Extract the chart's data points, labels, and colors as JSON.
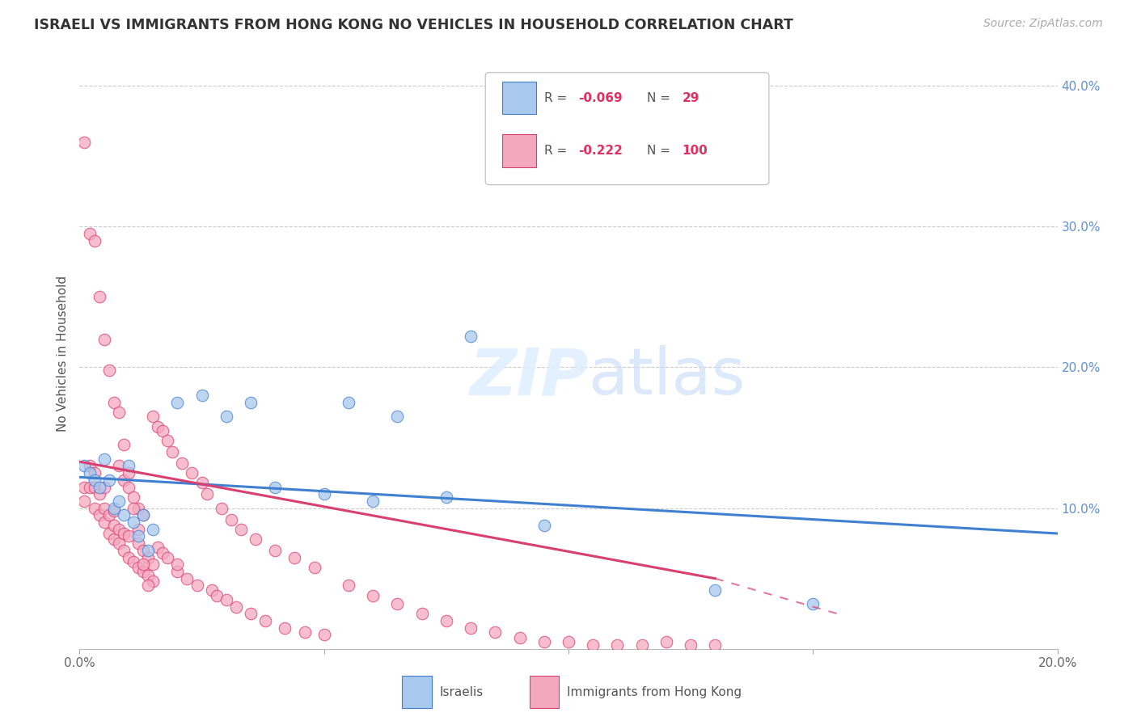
{
  "title": "ISRAELI VS IMMIGRANTS FROM HONG KONG NO VEHICLES IN HOUSEHOLD CORRELATION CHART",
  "source": "Source: ZipAtlas.com",
  "ylabel": "No Vehicles in Household",
  "xlim": [
    0.0,
    0.2
  ],
  "ylim": [
    0.0,
    0.42
  ],
  "blue_color": "#a8c8ee",
  "pink_color": "#f4a8c0",
  "blue_line_color": "#4080d0",
  "pink_line_color": "#d84070",
  "grid_color": "#cccccc",
  "background_color": "#ffffff",
  "israelis_x": [
    0.001,
    0.002,
    0.003,
    0.004,
    0.005,
    0.006,
    0.007,
    0.008,
    0.009,
    0.01,
    0.011,
    0.012,
    0.013,
    0.014,
    0.015,
    0.02,
    0.025,
    0.03,
    0.035,
    0.04,
    0.05,
    0.055,
    0.06,
    0.065,
    0.075,
    0.08,
    0.095,
    0.13,
    0.15
  ],
  "israelis_y": [
    0.13,
    0.125,
    0.12,
    0.115,
    0.135,
    0.12,
    0.1,
    0.105,
    0.095,
    0.13,
    0.09,
    0.08,
    0.095,
    0.07,
    0.085,
    0.175,
    0.18,
    0.165,
    0.175,
    0.115,
    0.11,
    0.175,
    0.105,
    0.165,
    0.108,
    0.222,
    0.088,
    0.042,
    0.032
  ],
  "hk_x": [
    0.001,
    0.001,
    0.002,
    0.002,
    0.003,
    0.003,
    0.003,
    0.004,
    0.004,
    0.005,
    0.005,
    0.005,
    0.006,
    0.006,
    0.007,
    0.007,
    0.007,
    0.008,
    0.008,
    0.008,
    0.009,
    0.009,
    0.009,
    0.01,
    0.01,
    0.01,
    0.011,
    0.011,
    0.012,
    0.012,
    0.012,
    0.013,
    0.013,
    0.013,
    0.014,
    0.014,
    0.015,
    0.015,
    0.015,
    0.016,
    0.016,
    0.017,
    0.017,
    0.018,
    0.018,
    0.019,
    0.02,
    0.02,
    0.021,
    0.022,
    0.023,
    0.024,
    0.025,
    0.026,
    0.027,
    0.028,
    0.029,
    0.03,
    0.031,
    0.032,
    0.033,
    0.035,
    0.036,
    0.038,
    0.04,
    0.042,
    0.044,
    0.046,
    0.048,
    0.05,
    0.055,
    0.06,
    0.065,
    0.07,
    0.075,
    0.08,
    0.085,
    0.09,
    0.095,
    0.1,
    0.105,
    0.11,
    0.115,
    0.12,
    0.125,
    0.13,
    0.001,
    0.002,
    0.003,
    0.004,
    0.005,
    0.006,
    0.007,
    0.008,
    0.009,
    0.01,
    0.011,
    0.012,
    0.013,
    0.014
  ],
  "hk_y": [
    0.105,
    0.115,
    0.115,
    0.13,
    0.1,
    0.115,
    0.125,
    0.095,
    0.11,
    0.09,
    0.1,
    0.115,
    0.082,
    0.095,
    0.078,
    0.088,
    0.098,
    0.075,
    0.085,
    0.13,
    0.07,
    0.082,
    0.12,
    0.065,
    0.08,
    0.115,
    0.062,
    0.108,
    0.058,
    0.075,
    0.1,
    0.055,
    0.07,
    0.095,
    0.052,
    0.065,
    0.048,
    0.165,
    0.06,
    0.072,
    0.158,
    0.068,
    0.155,
    0.065,
    0.148,
    0.14,
    0.055,
    0.06,
    0.132,
    0.05,
    0.125,
    0.045,
    0.118,
    0.11,
    0.042,
    0.038,
    0.1,
    0.035,
    0.092,
    0.03,
    0.085,
    0.025,
    0.078,
    0.02,
    0.07,
    0.015,
    0.065,
    0.012,
    0.058,
    0.01,
    0.045,
    0.038,
    0.032,
    0.025,
    0.02,
    0.015,
    0.012,
    0.008,
    0.005,
    0.005,
    0.003,
    0.003,
    0.003,
    0.005,
    0.003,
    0.003,
    0.36,
    0.295,
    0.29,
    0.25,
    0.22,
    0.198,
    0.175,
    0.168,
    0.145,
    0.125,
    0.1,
    0.085,
    0.06,
    0.045
  ],
  "blue_line_x0": 0.0,
  "blue_line_y0": 0.122,
  "blue_line_x1": 0.2,
  "blue_line_y1": 0.082,
  "pink_line_x0": 0.0,
  "pink_line_y0": 0.133,
  "pink_line_x1_solid": 0.13,
  "pink_line_y1_solid": 0.05,
  "pink_line_x1_dashed": 0.155,
  "pink_line_y1_dashed": 0.025
}
